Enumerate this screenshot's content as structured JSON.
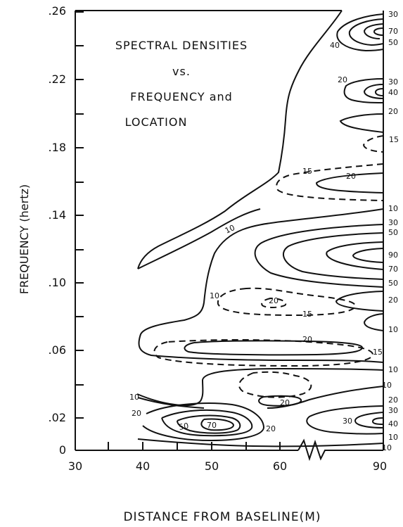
{
  "chart_data": {
    "type": "contour",
    "title_lines": [
      "SPECTRAL DENSITIES",
      "vs.",
      "FREQUENCY and",
      "LOCATION"
    ],
    "xlabel": "DISTANCE FROM BASELINE(M)",
    "ylabel": "FREQUENCY (hertz)",
    "x_ticks": [
      "30",
      "40",
      "50",
      "60",
      "90"
    ],
    "y_ticks": [
      "0",
      ".02",
      ".06",
      ".10",
      ".14",
      ".18",
      ".22",
      ".26"
    ],
    "contour_levels": {
      "solid": [
        "10",
        "20",
        "30",
        "40",
        "50",
        "70",
        "90"
      ],
      "dashed": [
        "15",
        "20"
      ]
    },
    "contour_labels": [
      {
        "text": "30"
      },
      {
        "text": "70"
      },
      {
        "text": "50"
      },
      {
        "text": "40"
      },
      {
        "text": "20"
      },
      {
        "text": "30"
      },
      {
        "text": "40"
      },
      {
        "text": "20"
      },
      {
        "text": "15"
      },
      {
        "text": "15"
      },
      {
        "text": "20"
      },
      {
        "text": "10"
      },
      {
        "text": "30"
      },
      {
        "text": "50"
      },
      {
        "text": "90"
      },
      {
        "text": "70"
      },
      {
        "text": "50"
      },
      {
        "text": "20"
      },
      {
        "text": "10"
      },
      {
        "text": "10"
      },
      {
        "text": "10"
      },
      {
        "text": "20"
      },
      {
        "text": "15"
      },
      {
        "text": "20"
      },
      {
        "text": "15"
      },
      {
        "text": "10"
      },
      {
        "text": "10"
      },
      {
        "text": "20"
      },
      {
        "text": "10"
      },
      {
        "text": "20"
      },
      {
        "text": "30"
      },
      {
        "text": "40"
      },
      {
        "text": "10"
      },
      {
        "text": "10"
      },
      {
        "text": "20"
      },
      {
        "text": "50"
      },
      {
        "text": "70"
      },
      {
        "text": "20"
      },
      {
        "text": "30"
      }
    ]
  }
}
